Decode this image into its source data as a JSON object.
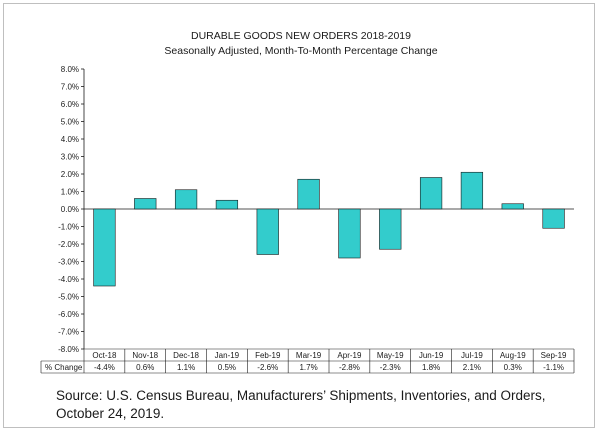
{
  "chart_data": {
    "type": "bar",
    "title": "DURABLE GOODS NEW ORDERS 2018-2019",
    "subtitle": "Seasonally Adjusted,  Month-To-Month  Percentage Change",
    "categories": [
      "Oct-18",
      "Nov-18",
      "Dec-18",
      "Jan-19",
      "Feb-19",
      "Mar-19",
      "Apr-19",
      "May-19",
      "Jun-19",
      "Jul-19",
      "Aug-19",
      "Sep-19"
    ],
    "values": [
      -4.4,
      0.6,
      1.1,
      0.5,
      -2.6,
      1.7,
      -2.8,
      -2.3,
      1.8,
      2.1,
      0.3,
      -1.1
    ],
    "value_labels": [
      "-4.4%",
      "0.6%",
      "1.1%",
      "0.5%",
      "-2.6%",
      "1.7%",
      "-2.8%",
      "-2.3%",
      "1.8%",
      "2.1%",
      "0.3%",
      "-1.1%"
    ],
    "row_header": "% Change",
    "ylim": [
      -8,
      8
    ],
    "y_ticks": [
      "8.0%",
      "7.0%",
      "6.0%",
      "5.0%",
      "4.0%",
      "3.0%",
      "2.0%",
      "1.0%",
      "0.0%",
      "-1.0%",
      "-2.0%",
      "-3.0%",
      "-4.0%",
      "-5.0%",
      "-6.0%",
      "-7.0%",
      "-8.0%"
    ],
    "y_tick_values": [
      8,
      7,
      6,
      5,
      4,
      3,
      2,
      1,
      0,
      -1,
      -2,
      -3,
      -4,
      -5,
      -6,
      -7,
      -8
    ],
    "grid": false,
    "bar_color": "#33cccc",
    "bar_edge_color": "#1a1a1a"
  },
  "source": "Source: U.S. Census Bureau, Manufacturers’ Shipments, Inventories, and Orders, October 24, 2019."
}
